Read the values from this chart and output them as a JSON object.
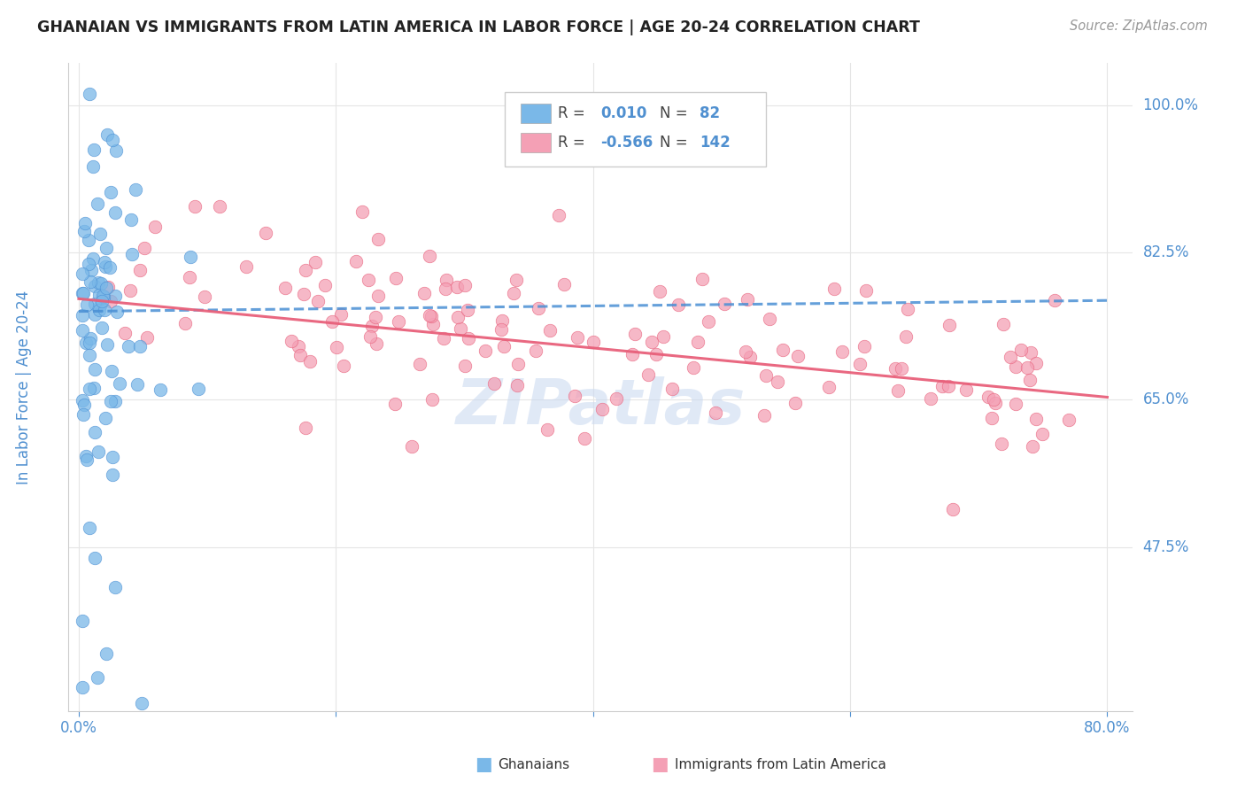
{
  "title": "GHANAIAN VS IMMIGRANTS FROM LATIN AMERICA IN LABOR FORCE | AGE 20-24 CORRELATION CHART",
  "source": "Source: ZipAtlas.com",
  "ylabel": "In Labor Force | Age 20-24",
  "ytick_labels": [
    "100.0%",
    "82.5%",
    "65.0%",
    "47.5%"
  ],
  "ytick_values": [
    1.0,
    0.825,
    0.65,
    0.475
  ],
  "xlim": [
    0.0,
    0.8
  ],
  "ylim": [
    0.28,
    1.05
  ],
  "blue_R": "0.010",
  "blue_N": "82",
  "pink_R": "-0.566",
  "pink_N": "142",
  "blue_color": "#7ab8e8",
  "pink_color": "#f4a0b5",
  "blue_line_color": "#4a8fd4",
  "pink_line_color": "#e8607a",
  "axis_label_color": "#5090d0",
  "watermark_color": "#c8d8f0",
  "grid_color": "#e5e5e5",
  "blue_line_y0": 0.755,
  "blue_line_y1": 0.768,
  "pink_line_y0": 0.77,
  "pink_line_y1": 0.653
}
